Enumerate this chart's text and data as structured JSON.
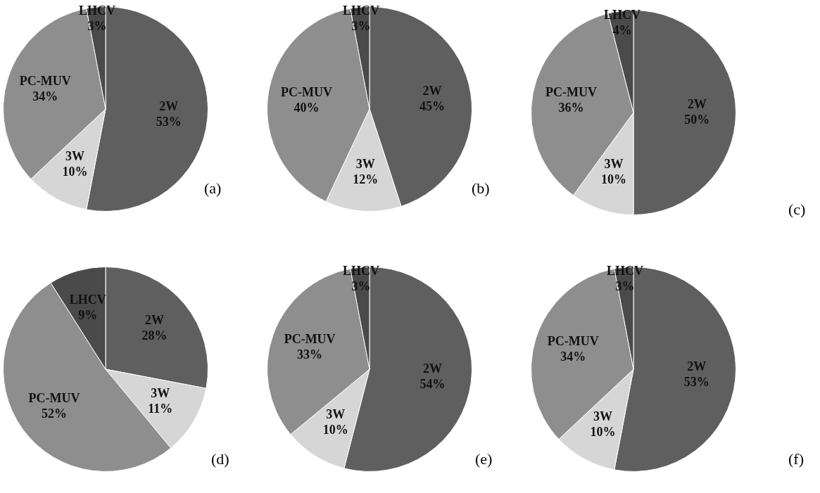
{
  "chart_data": [
    {
      "type": "pie",
      "categories": [
        "2W",
        "3W",
        "PC-MUV",
        "LHCV"
      ],
      "values": [
        53,
        10,
        34,
        3
      ],
      "value_labels": [
        "53%",
        "10%",
        "34%",
        "3%"
      ],
      "colors": [
        "#5f5f5f",
        "#d6d6d6",
        "#8e8e8e",
        "#4a4a4a"
      ],
      "annotations": [
        "(a)"
      ]
    },
    {
      "type": "pie",
      "categories": [
        "2W",
        "3W",
        "PC-MUV",
        "LHCV"
      ],
      "values": [
        45,
        12,
        40,
        3
      ],
      "value_labels": [
        "45%",
        "12%",
        "40%",
        "3%"
      ],
      "colors": [
        "#5f5f5f",
        "#d6d6d6",
        "#8e8e8e",
        "#4a4a4a"
      ],
      "annotations": [
        "(b)"
      ]
    },
    {
      "type": "pie",
      "categories": [
        "2W",
        "3W",
        "PC-MUV",
        "LHCV"
      ],
      "values": [
        50,
        10,
        36,
        4
      ],
      "value_labels": [
        "50%",
        "10%",
        "36%",
        "4%"
      ],
      "colors": [
        "#5f5f5f",
        "#d6d6d6",
        "#8e8e8e",
        "#4a4a4a"
      ],
      "annotations": [
        "(c)"
      ]
    },
    {
      "type": "pie",
      "categories": [
        "2W",
        "3W",
        "PC-MUV",
        "LHCV"
      ],
      "values": [
        28,
        11,
        52,
        9
      ],
      "value_labels": [
        "28%",
        "11%",
        "52%",
        "9%"
      ],
      "colors": [
        "#5f5f5f",
        "#d6d6d6",
        "#8e8e8e",
        "#4a4a4a"
      ],
      "annotations": [
        "(d)"
      ]
    },
    {
      "type": "pie",
      "categories": [
        "2W",
        "3W",
        "PC-MUV",
        "LHCV"
      ],
      "values": [
        54,
        10,
        33,
        3
      ],
      "value_labels": [
        "54%",
        "10%",
        "33%",
        "3%"
      ],
      "colors": [
        "#5f5f5f",
        "#d6d6d6",
        "#8e8e8e",
        "#4a4a4a"
      ],
      "annotations": [
        "(e)"
      ]
    },
    {
      "type": "pie",
      "categories": [
        "2W",
        "3W",
        "PC-MUV",
        "LHCV"
      ],
      "values": [
        53,
        10,
        34,
        3
      ],
      "value_labels": [
        "53%",
        "10%",
        "34%",
        "3%"
      ],
      "colors": [
        "#5f5f5f",
        "#d6d6d6",
        "#8e8e8e",
        "#4a4a4a"
      ],
      "annotations": [
        "(f)"
      ]
    }
  ]
}
